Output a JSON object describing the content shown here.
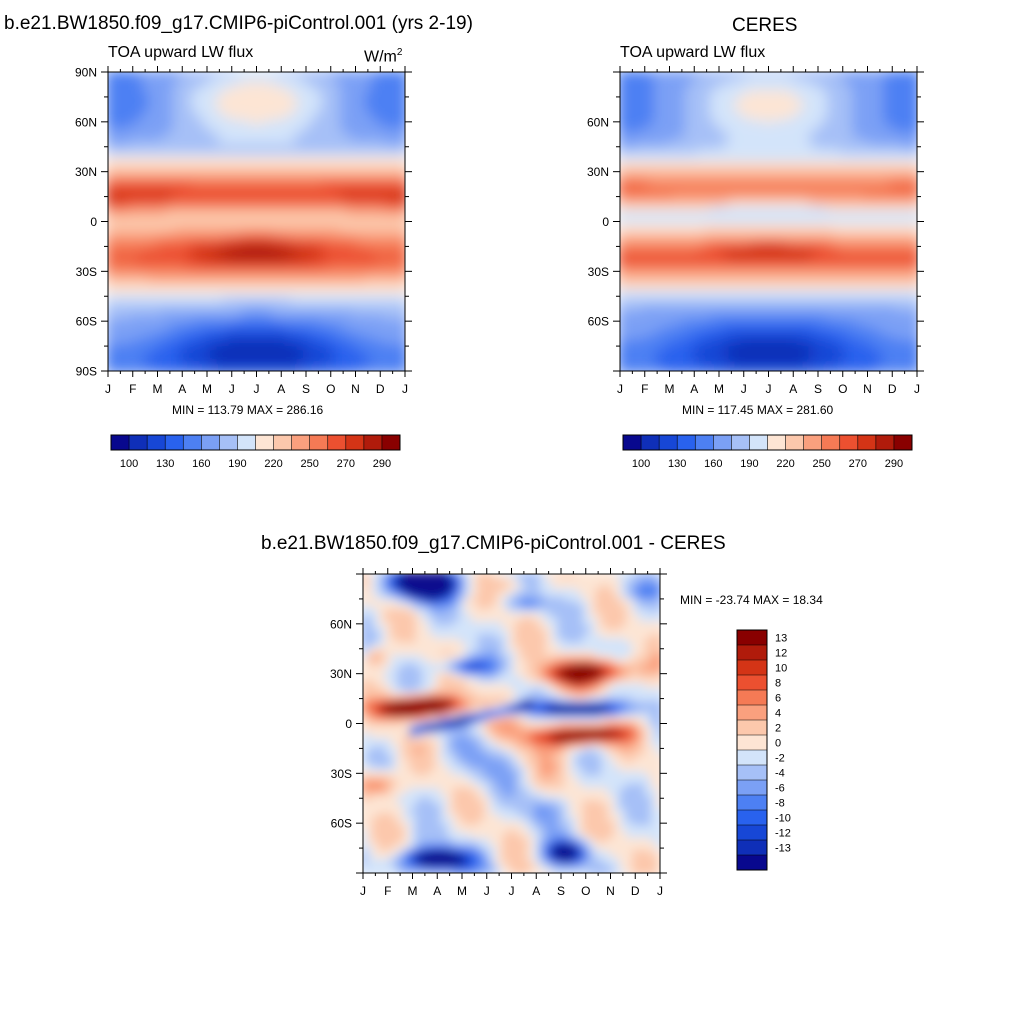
{
  "chart_data": [
    {
      "type": "heatmap",
      "id": "model",
      "title": "b.e21.BW1850.f09_g17.CMIP6-piControl.001 (yrs 2-19)",
      "subtitle": "TOA upward LW flux",
      "units_base": "W/m",
      "units_exp": "2",
      "x_ticks": [
        "J",
        "F",
        "M",
        "A",
        "M",
        "J",
        "J",
        "A",
        "S",
        "O",
        "N",
        "D",
        "J"
      ],
      "y_ticks": [
        {
          "label": "90N",
          "lat": 90
        },
        {
          "label": "60N",
          "lat": 60
        },
        {
          "label": "30N",
          "lat": 30
        },
        {
          "label": "0",
          "lat": 0
        },
        {
          "label": "30S",
          "lat": -30
        },
        {
          "label": "60S",
          "lat": -60
        },
        {
          "label": "90S",
          "lat": -90
        }
      ],
      "min": 113.79,
      "max": 286.16,
      "stats_label": "MIN = 113.79 MAX = 286.16",
      "ylim": [
        -90,
        90
      ],
      "colorbar": {
        "levels": [
          100,
          115,
          130,
          145,
          160,
          175,
          190,
          205,
          220,
          235,
          250,
          260,
          270,
          280,
          290
        ],
        "labels": [
          "100",
          "130",
          "160",
          "190",
          "220",
          "250",
          "270",
          "290"
        ],
        "label_level_index": [
          0,
          2,
          4,
          6,
          8,
          10,
          12,
          14
        ],
        "colors": [
          "#08088e",
          "#0f2fb8",
          "#1747d6",
          "#2962ee",
          "#4d80f3",
          "#7ba0f5",
          "#a6c0f7",
          "#d3e4fa",
          "#fde5d4",
          "#fcc8ac",
          "#faa07e",
          "#f57a55",
          "#ec5030",
          "#d43416",
          "#b01b0b",
          "#890000"
        ]
      }
    },
    {
      "type": "heatmap",
      "id": "obs",
      "title": "CERES",
      "subtitle": "TOA upward LW flux",
      "x_ticks": [
        "J",
        "F",
        "M",
        "A",
        "M",
        "J",
        "J",
        "A",
        "S",
        "O",
        "N",
        "D",
        "J"
      ],
      "y_ticks": [
        {
          "label": "60N",
          "lat": 60
        },
        {
          "label": "30N",
          "lat": 30
        },
        {
          "label": "0",
          "lat": 0
        },
        {
          "label": "30S",
          "lat": -30
        },
        {
          "label": "60S",
          "lat": -60
        }
      ],
      "min": 117.45,
      "max": 281.6,
      "stats_label": "MIN = 117.45 MAX = 281.60",
      "ylim": [
        -90,
        90
      ],
      "colorbar": {
        "labels": [
          "100",
          "130",
          "160",
          "190",
          "220",
          "250",
          "270",
          "290"
        ],
        "label_level_index": [
          0,
          2,
          4,
          6,
          8,
          10,
          12,
          14
        ]
      }
    },
    {
      "type": "heatmap",
      "id": "diff",
      "title": "b.e21.BW1850.f09_g17.CMIP6-piControl.001 - CERES",
      "x_ticks": [
        "J",
        "F",
        "M",
        "A",
        "M",
        "J",
        "J",
        "A",
        "S",
        "O",
        "N",
        "D",
        "J"
      ],
      "y_ticks": [
        {
          "label": "60N",
          "lat": 60
        },
        {
          "label": "30N",
          "lat": 30
        },
        {
          "label": "0",
          "lat": 0
        },
        {
          "label": "30S",
          "lat": -30
        },
        {
          "label": "60S",
          "lat": -60
        }
      ],
      "min": -23.74,
      "max": 18.34,
      "stats_label": "MIN = -23.74 MAX =  18.34",
      "ylim": [
        -90,
        90
      ],
      "colorbar": {
        "labels": [
          "13",
          "12",
          "10",
          "8",
          "6",
          "4",
          "2",
          "0",
          "-2",
          "-4",
          "-6",
          "-8",
          "-10",
          "-12",
          "-13"
        ],
        "colors": [
          "#890000",
          "#b01b0b",
          "#d43416",
          "#ec5030",
          "#f57a55",
          "#faa07e",
          "#fcc8ac",
          "#fde5d4",
          "#d3e4fa",
          "#a6c0f7",
          "#7ba0f5",
          "#4d80f3",
          "#2962ee",
          "#1747d6",
          "#0f2fb8",
          "#08088e"
        ]
      }
    }
  ]
}
